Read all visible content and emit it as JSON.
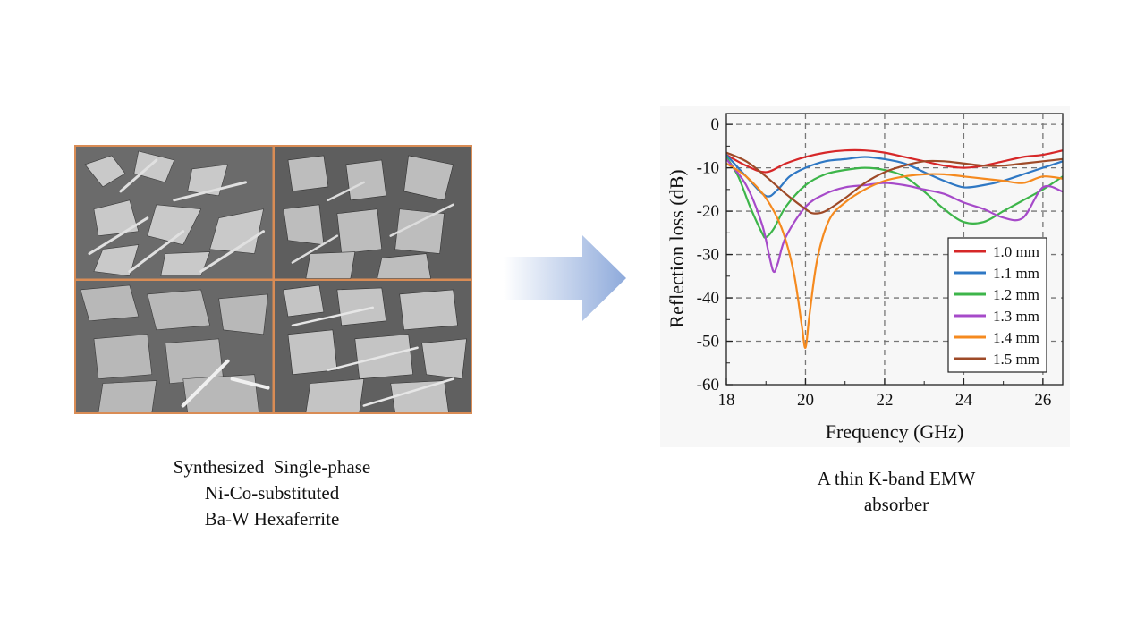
{
  "left_caption": {
    "lines": [
      "Synthesized  Single-phase",
      "Ni-Co-substituted",
      "Ba-W Hexaferrite"
    ]
  },
  "right_caption": {
    "lines": [
      "A thin K-band EMW",
      "absorber"
    ]
  },
  "colors": {
    "sem_border": "#d98c55",
    "arrow_start": "#ffffff",
    "arrow_end": "#8eaadb"
  },
  "chart_data": {
    "type": "line",
    "title": "",
    "xlabel": "Frequency (GHz)",
    "ylabel": "Reflection loss (dB)",
    "xlim": [
      18,
      26.5
    ],
    "ylim": [
      -60,
      2.5
    ],
    "xticks": [
      18,
      20,
      22,
      24,
      26
    ],
    "yticks": [
      0,
      -10,
      -20,
      -30,
      -40,
      -50,
      -60
    ],
    "grid": true,
    "legend_position": "bottom-right",
    "series": [
      {
        "name": "1.0 mm",
        "color": "#d62728",
        "x": [
          18,
          18.5,
          19,
          19.5,
          20,
          20.5,
          21,
          21.5,
          22,
          22.5,
          23,
          23.5,
          24,
          24.5,
          25,
          25.5,
          26,
          26.5
        ],
        "y": [
          -7,
          -9.5,
          -11,
          -9,
          -7.5,
          -6.5,
          -6,
          -6,
          -6.5,
          -7.5,
          -8.5,
          -9.5,
          -10,
          -9.5,
          -8.5,
          -7.5,
          -7,
          -6
        ]
      },
      {
        "name": "1.1 mm",
        "color": "#2f78c4",
        "x": [
          18,
          18.5,
          19,
          19.3,
          19.6,
          20,
          20.5,
          21,
          21.5,
          22,
          22.5,
          23,
          23.5,
          24,
          24.5,
          25,
          25.5,
          26,
          26.5
        ],
        "y": [
          -7,
          -12,
          -16.5,
          -15,
          -12,
          -10,
          -8.5,
          -8,
          -7.5,
          -8,
          -9,
          -11,
          -13,
          -14.5,
          -14,
          -13,
          -11.5,
          -10,
          -8.5
        ]
      },
      {
        "name": "1.2 mm",
        "color": "#3db54a",
        "x": [
          18,
          18.3,
          18.6,
          18.9,
          19,
          19.2,
          19.5,
          20,
          20.5,
          21,
          21.5,
          22,
          22.5,
          23,
          23.5,
          24,
          24.5,
          25,
          25.5,
          26,
          26.5
        ],
        "y": [
          -7.5,
          -12,
          -19,
          -25,
          -26,
          -24,
          -19,
          -14,
          -11.5,
          -10.5,
          -10,
          -10.5,
          -12,
          -15.5,
          -19.5,
          -22.5,
          -22.5,
          -20,
          -17.5,
          -15,
          -12
        ]
      },
      {
        "name": "1.3 mm",
        "color": "#a64ac9",
        "x": [
          18,
          18.5,
          18.9,
          19.1,
          19.2,
          19.3,
          19.5,
          20,
          20.5,
          21,
          21.5,
          22,
          22.5,
          23,
          23.5,
          24,
          24.5,
          25,
          25.5,
          26,
          26.5
        ],
        "y": [
          -8,
          -14,
          -23,
          -31,
          -34,
          -32,
          -26,
          -19,
          -16,
          -14.5,
          -14,
          -13.5,
          -14,
          -15,
          -16,
          -18,
          -19.5,
          -21.5,
          -21.5,
          -14.5,
          -15.5
        ]
      },
      {
        "name": "1.4 mm",
        "color": "#f58a1f",
        "x": [
          18,
          18.5,
          19,
          19.4,
          19.7,
          19.9,
          20,
          20.1,
          20.3,
          20.6,
          21,
          21.5,
          22,
          22.5,
          23,
          23.5,
          24,
          24.5,
          25,
          25.5,
          26,
          26.5
        ],
        "y": [
          -9,
          -12,
          -17,
          -24,
          -34,
          -46,
          -51.5,
          -44,
          -31,
          -22,
          -18,
          -15,
          -13,
          -12,
          -11.5,
          -11.5,
          -12,
          -12.5,
          -13,
          -13.5,
          -12,
          -12.5
        ]
      },
      {
        "name": "1.5 mm",
        "color": "#9e4a28",
        "x": [
          18,
          18.5,
          19,
          19.5,
          20,
          20.2,
          20.5,
          21,
          21.5,
          22,
          22.5,
          23,
          23.5,
          24,
          24.5,
          25,
          25.5,
          26,
          26.5
        ],
        "y": [
          -6.5,
          -8.5,
          -12,
          -16,
          -19.5,
          -20.5,
          -20,
          -17,
          -13.5,
          -11,
          -9.5,
          -8.5,
          -8.5,
          -9,
          -9.5,
          -9.5,
          -9,
          -8.5,
          -8
        ]
      }
    ]
  }
}
